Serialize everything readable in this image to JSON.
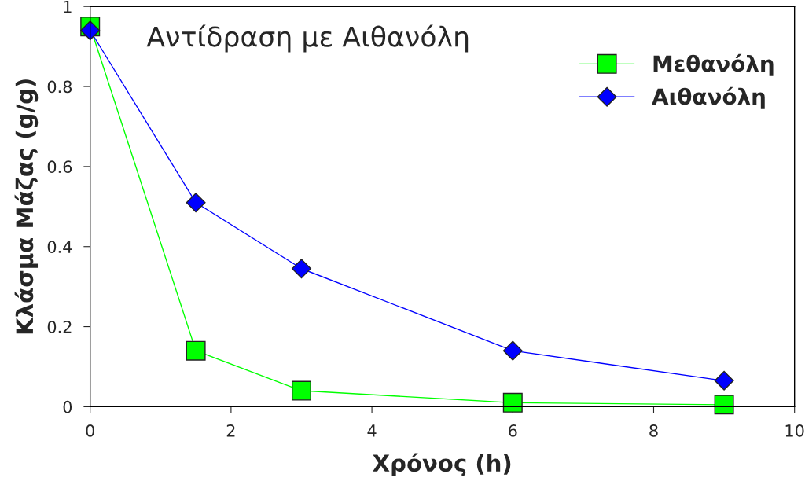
{
  "chart_data": {
    "type": "line",
    "title": "Αντίδραση με Αιθανόλη",
    "xlabel": "Χρόνος (h)",
    "ylabel": "Κλάσμα Μάζας (g/g)",
    "xlim": [
      0,
      10
    ],
    "xticks": [
      0,
      2,
      4,
      6,
      8,
      10
    ],
    "ylim": [
      0,
      1
    ],
    "yticks": [
      0,
      0.2,
      0.4,
      0.6,
      0.8,
      1
    ],
    "grid": false,
    "legend": "top right",
    "series": [
      {
        "name": "Μεθανόλη",
        "color": "#00ff00",
        "marker": "square",
        "x": [
          0,
          1.5,
          3,
          6,
          9
        ],
        "values": [
          0.95,
          0.14,
          0.04,
          0.01,
          0.005
        ]
      },
      {
        "name": "Αιθανόλη",
        "color": "#0000ff",
        "marker": "diamond",
        "x": [
          0,
          1.5,
          3,
          6,
          9
        ],
        "values": [
          0.94,
          0.51,
          0.345,
          0.14,
          0.065
        ]
      }
    ]
  }
}
